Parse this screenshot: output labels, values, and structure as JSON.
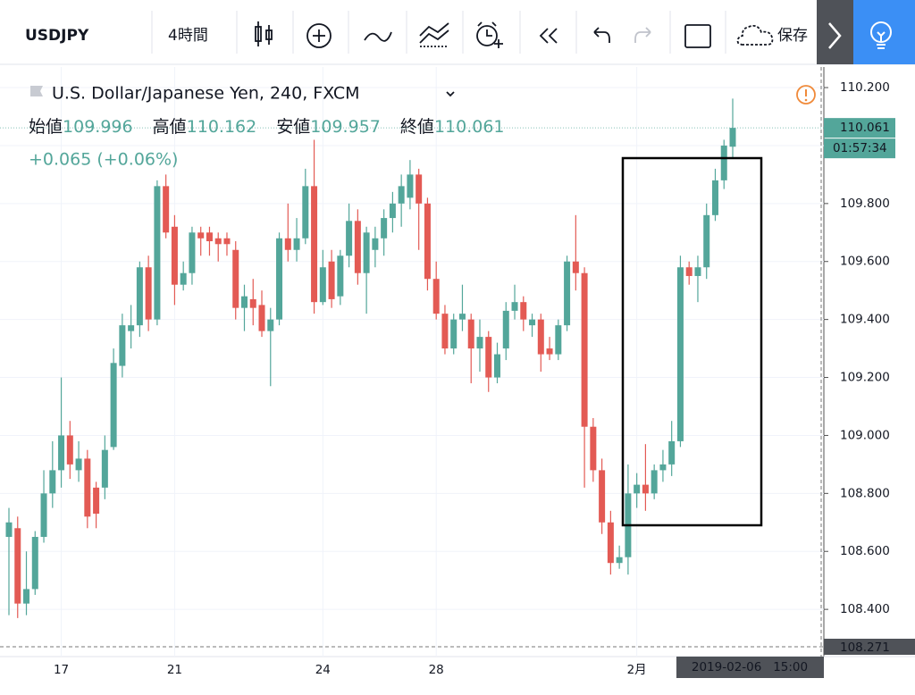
{
  "toolbar": {
    "symbol": "USDJPY",
    "interval": "4時間",
    "save": "保存"
  },
  "header": {
    "title": "U.S. Dollar/Japanese Yen, 240, FXCM",
    "open_label": "始値",
    "high_label": "高値",
    "low_label": "安値",
    "close_label": "終値",
    "change": "+0.065 (+0.06%)"
  },
  "chart_data": {
    "type": "candlestick",
    "categories": [
      null,
      null,
      null,
      null,
      null,
      null,
      "17",
      null,
      null,
      null,
      null,
      null,
      null,
      null,
      null,
      null,
      null,
      null,
      null,
      "21",
      null,
      null,
      null,
      null,
      null,
      null,
      null,
      null,
      null,
      null,
      null,
      null,
      null,
      null,
      null,
      null,
      "24",
      null,
      null,
      null,
      null,
      null,
      null,
      null,
      null,
      null,
      null,
      null,
      null,
      "28",
      null,
      null,
      null,
      null,
      null,
      null,
      null,
      null,
      null,
      null,
      null,
      null,
      null,
      null,
      null,
      null,
      null,
      null,
      null,
      null,
      null,
      null,
      "2月",
      null,
      null,
      null,
      null,
      null,
      null,
      null,
      null,
      null,
      null,
      null
    ],
    "open": [
      108.65,
      108.68,
      108.42,
      108.47,
      108.65,
      108.8,
      108.88,
      109.0,
      108.88,
      108.92,
      108.82,
      108.82,
      108.96,
      109.24,
      109.36,
      109.38,
      109.58,
      109.4,
      109.86,
      109.72,
      109.52,
      109.56,
      109.7,
      109.7,
      109.68,
      109.68,
      109.64,
      109.44,
      109.47,
      109.45,
      109.36,
      109.4,
      109.68,
      109.64,
      109.68,
      109.86,
      109.46,
      109.6,
      109.48,
      109.62,
      109.74,
      109.56,
      109.64,
      109.68,
      109.75,
      109.8,
      109.82,
      109.9,
      109.8,
      109.54,
      109.42,
      109.3,
      109.4,
      109.4,
      109.3,
      109.34,
      109.2,
      109.3,
      109.43,
      109.46,
      109.38,
      109.4,
      109.3,
      109.28,
      109.38,
      109.6,
      109.56,
      109.03,
      108.88,
      108.7,
      108.56,
      108.58,
      108.8,
      108.83,
      108.8,
      108.88,
      108.9,
      108.98,
      109.58,
      109.55,
      109.58,
      109.76,
      109.88,
      109.996
    ],
    "high": [
      108.75,
      108.72,
      108.6,
      108.67,
      108.88,
      108.98,
      109.2,
      109.05,
      108.98,
      108.95,
      108.84,
      109.0,
      109.3,
      109.42,
      109.45,
      109.6,
      109.62,
      109.88,
      109.9,
      109.76,
      109.6,
      109.72,
      109.72,
      109.72,
      109.7,
      109.7,
      109.67,
      109.52,
      109.54,
      109.5,
      109.44,
      109.7,
      109.8,
      109.75,
      109.92,
      110.02,
      109.64,
      109.64,
      109.64,
      109.8,
      109.78,
      109.72,
      109.72,
      109.78,
      109.84,
      109.9,
      109.95,
      109.92,
      109.82,
      109.6,
      109.45,
      109.42,
      109.52,
      109.42,
      109.4,
      109.36,
      109.32,
      109.46,
      109.52,
      109.48,
      109.42,
      109.42,
      109.34,
      109.4,
      109.62,
      109.76,
      109.58,
      109.06,
      108.92,
      108.74,
      108.62,
      108.9,
      108.87,
      108.97,
      108.9,
      108.95,
      109.05,
      109.62,
      109.6,
      109.62,
      109.8,
      109.92,
      110.02,
      110.162
    ],
    "low": [
      108.38,
      108.37,
      108.38,
      108.45,
      108.63,
      108.75,
      108.82,
      108.85,
      108.84,
      108.68,
      108.68,
      108.78,
      108.95,
      109.2,
      109.3,
      109.34,
      109.36,
      109.38,
      109.68,
      109.45,
      109.5,
      109.52,
      109.62,
      109.62,
      109.6,
      109.62,
      109.4,
      109.36,
      109.38,
      109.34,
      109.17,
      109.38,
      109.6,
      109.6,
      109.66,
      109.42,
      109.45,
      109.44,
      109.45,
      109.58,
      109.52,
      109.42,
      109.58,
      109.62,
      109.7,
      109.72,
      109.78,
      109.64,
      109.5,
      109.4,
      109.28,
      109.28,
      109.36,
      109.18,
      109.22,
      109.15,
      109.18,
      109.26,
      109.4,
      109.36,
      109.34,
      109.22,
      109.26,
      109.26,
      109.36,
      109.5,
      108.82,
      108.84,
      108.66,
      108.52,
      108.54,
      108.52,
      108.75,
      108.74,
      108.78,
      108.84,
      108.86,
      108.96,
      109.52,
      109.46,
      109.54,
      109.74,
      109.85,
      109.957
    ],
    "close": [
      108.7,
      108.42,
      108.47,
      108.65,
      108.8,
      108.88,
      109.0,
      108.9,
      108.92,
      108.72,
      108.73,
      108.95,
      109.25,
      109.38,
      109.38,
      109.58,
      109.4,
      109.86,
      109.7,
      109.52,
      109.56,
      109.7,
      109.68,
      109.67,
      109.66,
      109.66,
      109.44,
      109.48,
      109.44,
      109.36,
      109.4,
      109.68,
      109.64,
      109.68,
      109.86,
      109.46,
      109.58,
      109.47,
      109.62,
      109.74,
      109.56,
      109.7,
      109.68,
      109.75,
      109.8,
      109.86,
      109.9,
      109.8,
      109.54,
      109.42,
      109.3,
      109.4,
      109.42,
      109.3,
      109.34,
      109.2,
      109.28,
      109.43,
      109.46,
      109.4,
      109.4,
      109.28,
      109.28,
      109.38,
      109.6,
      109.56,
      109.03,
      108.88,
      108.7,
      108.56,
      108.58,
      108.8,
      108.83,
      108.8,
      108.88,
      108.9,
      108.98,
      109.58,
      109.55,
      109.58,
      109.76,
      109.88,
      110.0,
      110.061
    ],
    "up_color": "#53a69a",
    "down_color": "#e35a54",
    "ylim": [
      108.271,
      110.271
    ],
    "yticks": [
      {
        "value": 108.4,
        "label": "108.400"
      },
      {
        "value": 108.6,
        "label": "108.600"
      },
      {
        "value": 108.8,
        "label": "108.800"
      },
      {
        "value": 109.0,
        "label": "109.000"
      },
      {
        "value": 109.2,
        "label": "109.200"
      },
      {
        "value": 109.4,
        "label": "109.400"
      },
      {
        "value": 109.6,
        "label": "109.600"
      },
      {
        "value": 109.8,
        "label": "109.800"
      },
      {
        "value": 110.0,
        "label": "110.000"
      },
      {
        "value": 110.2,
        "label": "110.200"
      }
    ],
    "grid": true,
    "countdown": "01:57:34",
    "crosshair": {
      "price": 108.271,
      "time": "2019-02-06   15:00"
    }
  }
}
